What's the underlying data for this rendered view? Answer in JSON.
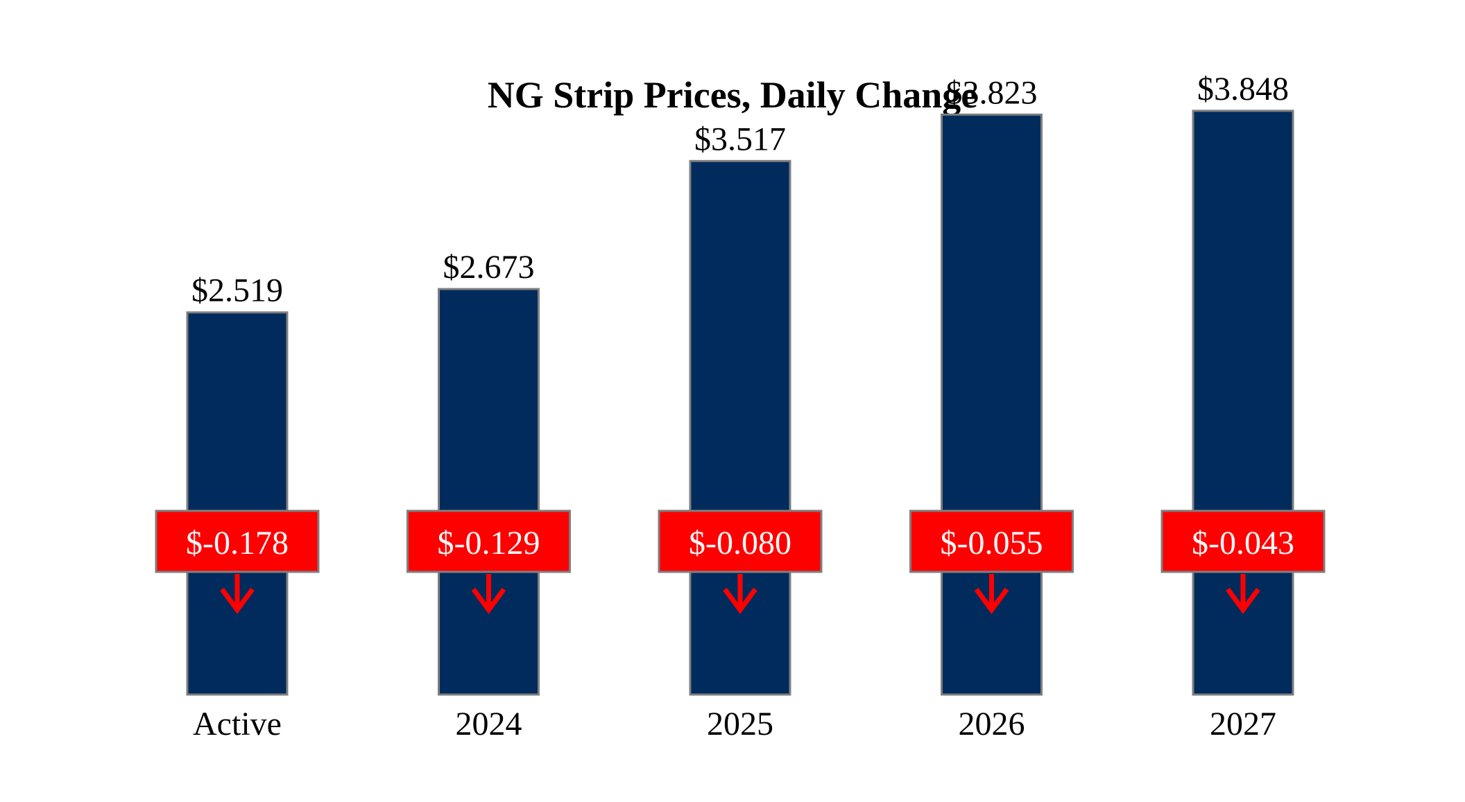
{
  "chart_data": {
    "type": "bar",
    "title": "NG Strip Prices, Daily Change",
    "xlabel": "",
    "ylabel": "",
    "categories": [
      "Active",
      "2024",
      "2025",
      "2026",
      "2027"
    ],
    "values": [
      2.519,
      2.673,
      3.517,
      3.823,
      3.848
    ],
    "value_labels": [
      "$2.519",
      "$2.673",
      "$3.517",
      "$3.823",
      "$3.848"
    ],
    "changes": [
      -0.178,
      -0.129,
      -0.08,
      -0.055,
      -0.043
    ],
    "change_labels": [
      "$-0.178",
      "$-0.129",
      "$-0.080",
      "$-0.055",
      "$-0.043"
    ],
    "change_direction_icon": "arrow-down-icon",
    "ylim": [
      0,
      4.35
    ],
    "grid": false,
    "legend": "none",
    "colors": {
      "bar": "#002B5C",
      "bar_border": "#7F7F7F",
      "change_box": "#FF0000",
      "change_text": "#FFFFFF",
      "arrow": "#FF0000",
      "text": "#000000"
    }
  }
}
